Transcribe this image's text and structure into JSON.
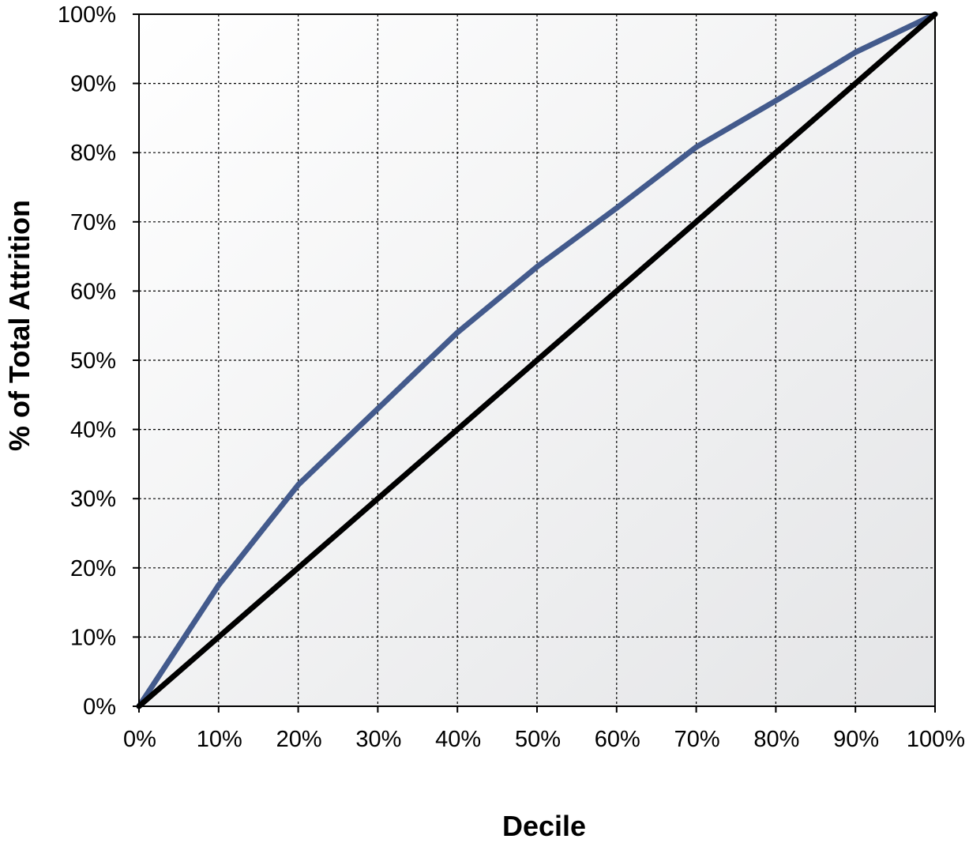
{
  "chart_data": {
    "type": "line",
    "xlabel": "Decile",
    "ylabel": "% of Total Attrition",
    "xlim": [
      0,
      100
    ],
    "ylim": [
      0,
      100
    ],
    "x_tick_labels": [
      "0%",
      "10%",
      "20%",
      "30%",
      "40%",
      "50%",
      "60%",
      "70%",
      "80%",
      "90%",
      "100%"
    ],
    "y_tick_labels": [
      "0%",
      "10%",
      "20%",
      "30%",
      "40%",
      "50%",
      "60%",
      "70%",
      "80%",
      "90%",
      "100%"
    ],
    "grid": true,
    "legend": "none",
    "x": [
      0,
      10,
      20,
      30,
      40,
      50,
      60,
      70,
      80,
      90,
      100
    ],
    "series": [
      {
        "color": "#435a8c",
        "values": [
          0,
          17.5,
          32,
          43,
          54,
          63.5,
          72,
          80.8,
          87.5,
          94.5,
          100
        ]
      },
      {
        "color": "#000000",
        "values": [
          0,
          10,
          20,
          30,
          40,
          50,
          60,
          70,
          80,
          90,
          100
        ]
      }
    ],
    "background_gradient": [
      "#ffffff",
      "#e4e5e7"
    ]
  }
}
